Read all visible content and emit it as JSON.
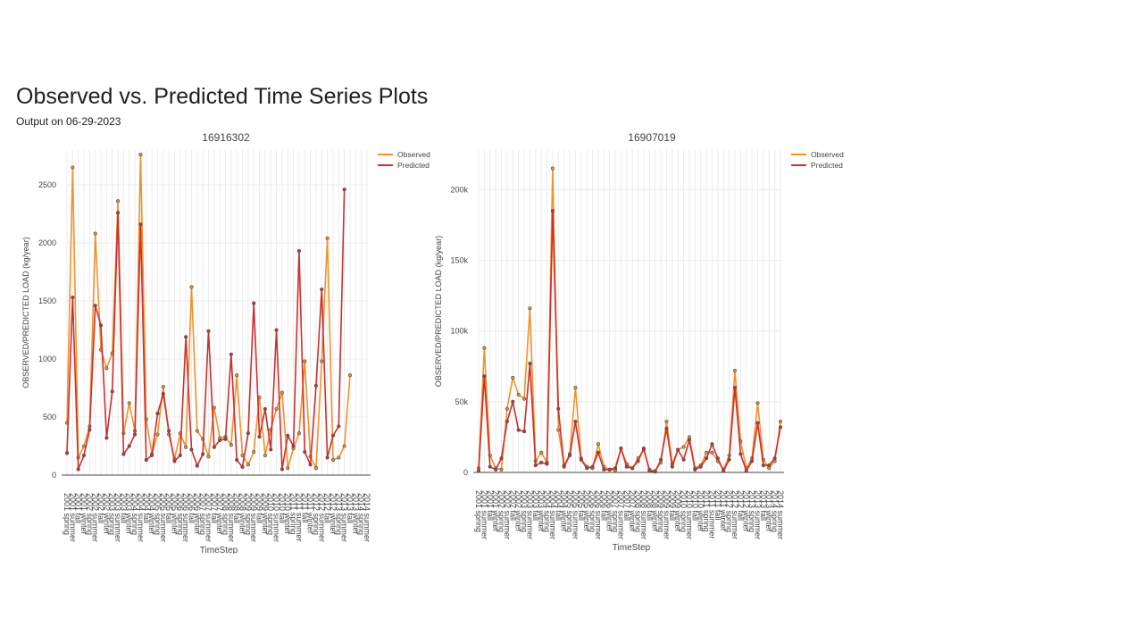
{
  "page": {
    "title": "Observed vs. Predicted Time Series Plots",
    "subtitle": "Output on 06-29-2023"
  },
  "chart_data": [
    {
      "type": "line",
      "title": "16916302",
      "xlabel": "TimeStep",
      "ylabel": "OBSERVED/PREDICTED LOAD (kg/year)",
      "ylim": [
        0,
        2800
      ],
      "yticks": [
        0,
        500,
        1000,
        1500,
        2000,
        2500
      ],
      "yticklabels": [
        "0",
        "500",
        "1000",
        "1500",
        "2000",
        "2500"
      ],
      "grid": true,
      "legend_position": "top-right",
      "categories": [
        "2001 spring",
        "2001 summer",
        "2001 fall",
        "2001 winter",
        "2002 spring",
        "2002 summer",
        "2002 fall",
        "2002 winter",
        "2003 spring",
        "2003 summer",
        "2003 fall",
        "2003 winter",
        "2004 spring",
        "2004 summer",
        "2004 fall",
        "2004 winter",
        "2005 spring",
        "2005 summer",
        "2005 fall",
        "2005 winter",
        "2006 spring",
        "2006 summer",
        "2006 fall",
        "2006 winter",
        "2007 spring",
        "2007 summer",
        "2007 fall",
        "2007 winter",
        "2008 spring",
        "2008 summer",
        "2008 fall",
        "2008 winter",
        "2009 spring",
        "2009 summer",
        "2009 fall",
        "2009 winter",
        "2010 spring",
        "2010 summer",
        "2010 fall",
        "2010 winter",
        "2011 spring",
        "2011 summer",
        "2011 fall",
        "2011 winter",
        "2012 spring",
        "2012 summer",
        "2012 fall",
        "2012 winter",
        "2013 spring",
        "2013 summer",
        "2013 fall",
        "2013 winter",
        "2014 spring",
        "2014 summer"
      ],
      "series": [
        {
          "name": "Observed",
          "color": "#f0922b",
          "values": [
            450,
            2650,
            150,
            250,
            420,
            2080,
            1080,
            920,
            1050,
            2360,
            360,
            620,
            380,
            2760,
            480,
            180,
            350,
            760,
            350,
            140,
            360,
            240,
            1620,
            380,
            310,
            160,
            580,
            320,
            330,
            260,
            860,
            170,
            90,
            200,
            670,
            170,
            390,
            570,
            710,
            60,
            230,
            360,
            980,
            160,
            60,
            980,
            2040,
            130,
            150,
            250,
            860,
            null,
            null,
            null
          ]
        },
        {
          "name": "Predicted",
          "color": "#cc2f2f",
          "values": [
            190,
            1530,
            50,
            170,
            390,
            1460,
            1290,
            320,
            720,
            2260,
            180,
            250,
            350,
            2160,
            130,
            170,
            530,
            700,
            380,
            120,
            170,
            1190,
            220,
            80,
            180,
            1240,
            240,
            300,
            310,
            1040,
            130,
            70,
            360,
            1480,
            330,
            570,
            220,
            1250,
            50,
            340,
            250,
            1930,
            200,
            90,
            770,
            1600,
            150,
            340,
            420,
            2460,
            null,
            null,
            null,
            null
          ]
        }
      ]
    },
    {
      "type": "line",
      "title": "16907019",
      "xlabel": "TimeStep",
      "ylabel": "OBSERVED/PREDICTED LOAD (kg/year)",
      "ylim": [
        0,
        228000
      ],
      "yticks": [
        0,
        50000,
        100000,
        150000,
        200000
      ],
      "yticklabels": [
        "0",
        "50k",
        "100k",
        "150k",
        "200k"
      ],
      "grid": true,
      "legend_position": "top-right",
      "categories": [
        "2001 spring",
        "2001 summer",
        "2001 fall",
        "2001 winter",
        "2002 spring",
        "2002 summer",
        "2002 fall",
        "2002 winter",
        "2003 spring",
        "2003 summer",
        "2003 fall",
        "2003 winter",
        "2004 spring",
        "2004 summer",
        "2004 fall",
        "2004 winter",
        "2005 spring",
        "2005 summer",
        "2005 fall",
        "2005 winter",
        "2006 spring",
        "2006 summer",
        "2006 fall",
        "2006 winter",
        "2007 spring",
        "2007 summer",
        "2007 fall",
        "2007 winter",
        "2008 spring",
        "2008 summer",
        "2008 fall",
        "2008 winter",
        "2009 spring",
        "2009 summer",
        "2009 fall",
        "2009 winter",
        "2010 spring",
        "2010 summer",
        "2010 fall",
        "2010 winter",
        "2011 spring",
        "2011 summer",
        "2011 fall",
        "2011 winter",
        "2012 spring",
        "2012 summer",
        "2012 fall",
        "2012 winter",
        "2013 spring",
        "2013 summer",
        "2013 fall",
        "2013 winter",
        "2014 spring",
        "2014 summer"
      ],
      "series": [
        {
          "name": "Observed",
          "color": "#f0922b",
          "values": [
            3000,
            88000,
            12000,
            3000,
            2000,
            45000,
            67000,
            55000,
            52000,
            116000,
            8000,
            14000,
            7000,
            215000,
            30000,
            5000,
            13000,
            60000,
            10000,
            4000,
            3000,
            20000,
            4000,
            2000,
            1500,
            17000,
            6000,
            3000,
            10000,
            16000,
            2000,
            1000,
            7000,
            36000,
            6000,
            16000,
            18000,
            25000,
            3000,
            5000,
            14000,
            14000,
            8000,
            2000,
            12000,
            72000,
            22000,
            3000,
            10000,
            49000,
            9000,
            3000,
            8000,
            36000
          ]
        },
        {
          "name": "Predicted",
          "color": "#cc2f2f",
          "values": [
            1000,
            68000,
            4000,
            2000,
            10000,
            36000,
            50000,
            30000,
            29000,
            77000,
            5000,
            7000,
            6000,
            185000,
            45000,
            4000,
            12000,
            36000,
            9000,
            3000,
            4000,
            14000,
            2000,
            2000,
            3000,
            17000,
            4000,
            3000,
            8000,
            17000,
            1000,
            500,
            9000,
            31000,
            4000,
            16000,
            9000,
            23000,
            2000,
            4000,
            10000,
            20000,
            10000,
            1000,
            9000,
            60000,
            13000,
            1000,
            8000,
            35000,
            5000,
            5000,
            10000,
            32000
          ]
        }
      ]
    }
  ]
}
